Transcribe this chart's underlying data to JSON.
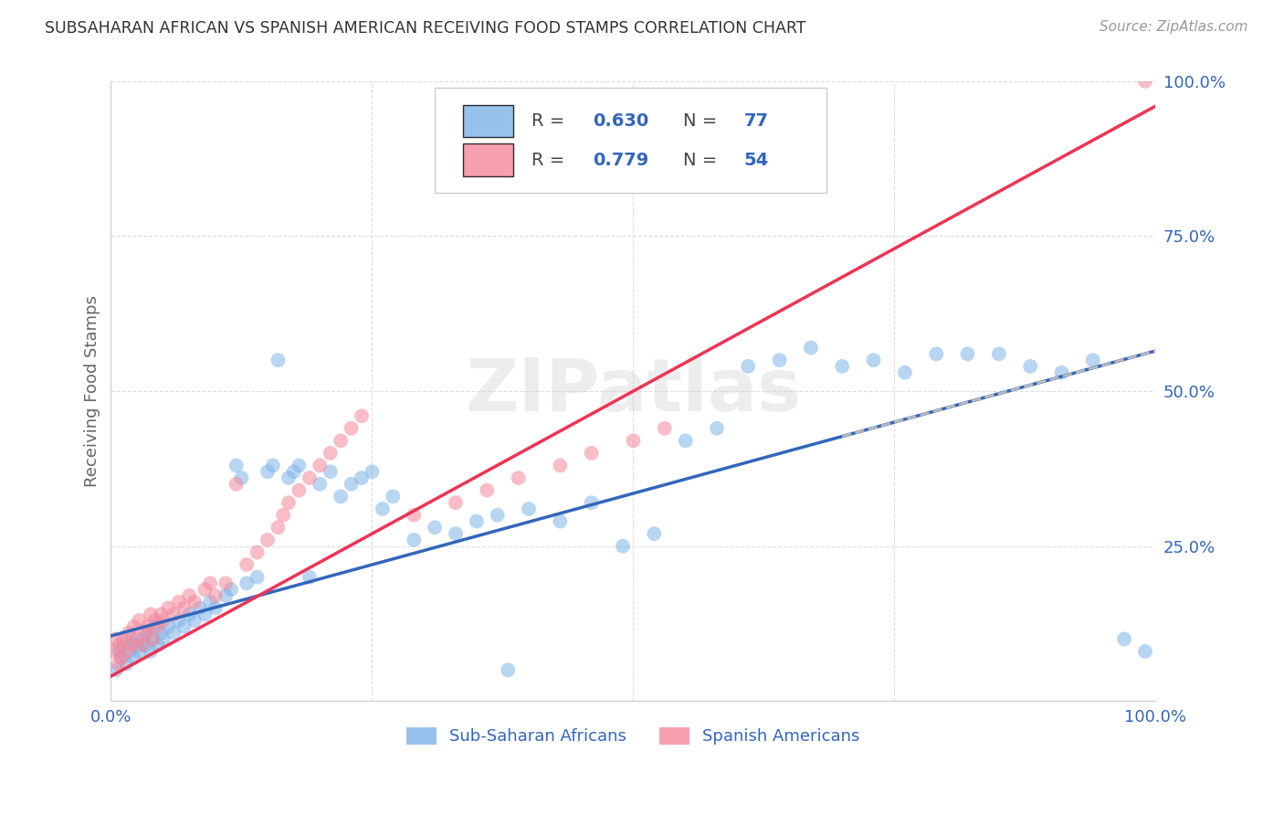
{
  "title": "SUBSAHARAN AFRICAN VS SPANISH AMERICAN RECEIVING FOOD STAMPS CORRELATION CHART",
  "source": "Source: ZipAtlas.com",
  "ylabel": "Receiving Food Stamps",
  "xlim": [
    0.0,
    1.0
  ],
  "ylim": [
    0.0,
    1.0
  ],
  "y_ticks": [
    0.0,
    0.25,
    0.5,
    0.75,
    1.0
  ],
  "x_ticks": [
    0.0,
    0.25,
    0.5,
    0.75,
    1.0
  ],
  "watermark": "ZIPatlas",
  "blue_color": "#7EB3E8",
  "pink_color": "#F4879A",
  "blue_line_color": "#3366BB",
  "pink_line_color": "#EE3355",
  "dashed_line_color": "#BBBBBB",
  "background_color": "#FFFFFF",
  "grid_color": "#DDDDDD",
  "title_color": "#333333",
  "axis_label_color": "#3366BB",
  "legend_label": [
    "Sub-Saharan Africans",
    "Spanish Americans"
  ],
  "blue_scatter_x": [
    0.005,
    0.008,
    0.01,
    0.012,
    0.015,
    0.018,
    0.02,
    0.022,
    0.025,
    0.027,
    0.03,
    0.033,
    0.035,
    0.038,
    0.04,
    0.042,
    0.045,
    0.048,
    0.05,
    0.055,
    0.06,
    0.065,
    0.07,
    0.075,
    0.08,
    0.085,
    0.09,
    0.095,
    0.1,
    0.11,
    0.115,
    0.12,
    0.125,
    0.13,
    0.14,
    0.15,
    0.155,
    0.16,
    0.17,
    0.175,
    0.18,
    0.19,
    0.2,
    0.21,
    0.22,
    0.23,
    0.24,
    0.25,
    0.26,
    0.27,
    0.29,
    0.31,
    0.33,
    0.35,
    0.37,
    0.4,
    0.43,
    0.46,
    0.49,
    0.52,
    0.55,
    0.58,
    0.61,
    0.64,
    0.67,
    0.7,
    0.73,
    0.76,
    0.79,
    0.82,
    0.85,
    0.88,
    0.91,
    0.94,
    0.97,
    0.99,
    0.38
  ],
  "blue_scatter_y": [
    0.05,
    0.08,
    0.07,
    0.09,
    0.06,
    0.08,
    0.1,
    0.07,
    0.09,
    0.08,
    0.1,
    0.09,
    0.11,
    0.08,
    0.1,
    0.12,
    0.09,
    0.11,
    0.1,
    0.12,
    0.11,
    0.13,
    0.12,
    0.14,
    0.13,
    0.15,
    0.14,
    0.16,
    0.15,
    0.17,
    0.18,
    0.38,
    0.36,
    0.19,
    0.2,
    0.37,
    0.38,
    0.55,
    0.36,
    0.37,
    0.38,
    0.2,
    0.35,
    0.37,
    0.33,
    0.35,
    0.36,
    0.37,
    0.31,
    0.33,
    0.26,
    0.28,
    0.27,
    0.29,
    0.3,
    0.31,
    0.29,
    0.32,
    0.25,
    0.27,
    0.42,
    0.44,
    0.54,
    0.55,
    0.57,
    0.54,
    0.55,
    0.53,
    0.56,
    0.56,
    0.56,
    0.54,
    0.53,
    0.55,
    0.1,
    0.08,
    0.05
  ],
  "pink_scatter_x": [
    0.003,
    0.005,
    0.007,
    0.008,
    0.01,
    0.012,
    0.015,
    0.017,
    0.02,
    0.022,
    0.025,
    0.027,
    0.03,
    0.033,
    0.035,
    0.038,
    0.04,
    0.042,
    0.045,
    0.048,
    0.05,
    0.055,
    0.06,
    0.065,
    0.07,
    0.075,
    0.08,
    0.09,
    0.095,
    0.1,
    0.11,
    0.12,
    0.13,
    0.14,
    0.15,
    0.16,
    0.165,
    0.17,
    0.18,
    0.19,
    0.2,
    0.21,
    0.22,
    0.23,
    0.24,
    0.29,
    0.33,
    0.36,
    0.39,
    0.43,
    0.46,
    0.5,
    0.53,
    0.99
  ],
  "pink_scatter_y": [
    0.08,
    0.1,
    0.06,
    0.09,
    0.07,
    0.1,
    0.08,
    0.11,
    0.09,
    0.12,
    0.1,
    0.13,
    0.09,
    0.11,
    0.12,
    0.14,
    0.1,
    0.13,
    0.12,
    0.14,
    0.13,
    0.15,
    0.14,
    0.16,
    0.15,
    0.17,
    0.16,
    0.18,
    0.19,
    0.17,
    0.19,
    0.35,
    0.22,
    0.24,
    0.26,
    0.28,
    0.3,
    0.32,
    0.34,
    0.36,
    0.38,
    0.4,
    0.42,
    0.44,
    0.46,
    0.3,
    0.32,
    0.34,
    0.36,
    0.38,
    0.4,
    0.42,
    0.44,
    1.0
  ]
}
